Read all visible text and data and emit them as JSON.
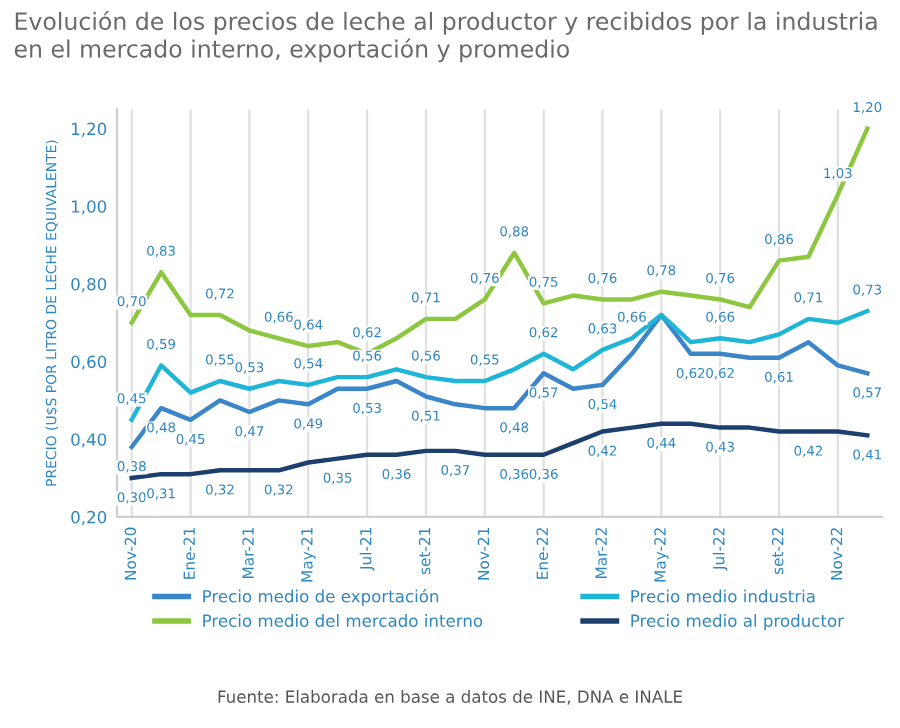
{
  "chart_data": {
    "type": "line",
    "title": "Evolución de los precios de leche al productor y recibidos por la industria en el mercado interno, exportación y promedio",
    "ylabel": "PRECIO (U$S POR LITRO DE LECHE EQUIVALENTE)",
    "categories": [
      "Nov-20",
      null,
      "Ene-21",
      null,
      "Mar-21",
      null,
      "May-21",
      null,
      "Jul-21",
      null,
      "set-21",
      null,
      "Nov-21",
      null,
      "Ene-22",
      null,
      "Mar-22",
      null,
      "May-22",
      null,
      "Jul-22",
      null,
      "set-22",
      null,
      "Nov-22",
      null
    ],
    "series": [
      {
        "name": "Precio medio de exportación",
        "color": "#3a86c8",
        "values": [
          0.38,
          0.48,
          0.45,
          0.5,
          0.47,
          0.5,
          0.49,
          0.53,
          0.53,
          0.55,
          0.51,
          0.49,
          0.48,
          0.48,
          0.57,
          0.53,
          0.54,
          0.62,
          0.72,
          0.62,
          0.62,
          0.61,
          0.61,
          0.65,
          0.59,
          0.57
        ],
        "value_labels": [
          "0,38",
          "0,48",
          "0,45",
          null,
          "0,47",
          null,
          "0,49",
          null,
          "0,53",
          null,
          "0,51",
          null,
          null,
          "0,48",
          "0,57",
          null,
          "0,54",
          null,
          null,
          "0,62",
          "0,62",
          null,
          "0,61",
          null,
          null,
          "0,57"
        ]
      },
      {
        "name": "Precio medio del mercado interno",
        "color": "#8dc63f",
        "values": [
          0.7,
          0.83,
          0.72,
          0.72,
          0.68,
          0.66,
          0.64,
          0.65,
          0.62,
          0.66,
          0.71,
          0.71,
          0.76,
          0.88,
          0.75,
          0.77,
          0.76,
          0.76,
          0.78,
          0.77,
          0.76,
          0.74,
          0.86,
          0.87,
          1.03,
          1.2
        ],
        "value_labels": [
          "0,70",
          "0,83",
          null,
          "0,72",
          null,
          "0,66",
          "0,64",
          null,
          "0,62",
          null,
          "0,71",
          null,
          "0,76",
          "0,88",
          "0,75",
          null,
          "0,76",
          null,
          "0,78",
          null,
          "0,76",
          null,
          "0,86",
          null,
          "1,03",
          "1,20"
        ]
      },
      {
        "name": "Precio medio industria",
        "color": "#1fb5d6",
        "values": [
          0.45,
          0.59,
          0.52,
          0.55,
          0.53,
          0.55,
          0.54,
          0.56,
          0.56,
          0.58,
          0.56,
          0.55,
          0.55,
          0.58,
          0.62,
          0.58,
          0.63,
          0.66,
          0.72,
          0.65,
          0.66,
          0.65,
          0.67,
          0.71,
          0.7,
          0.73
        ],
        "value_labels": [
          "0,45",
          "0,59",
          null,
          "0,55",
          "0,53",
          null,
          "0,54",
          null,
          "0,56",
          null,
          "0,56",
          null,
          "0,55",
          null,
          "0,62",
          null,
          "0,63",
          "0,66",
          null,
          null,
          "0,66",
          null,
          null,
          "0,71",
          null,
          "0,73"
        ]
      },
      {
        "name": "Precio medio al productor",
        "color": "#1d3f6e",
        "values": [
          0.3,
          0.31,
          0.31,
          0.32,
          0.32,
          0.32,
          0.34,
          0.35,
          0.36,
          0.36,
          0.37,
          0.37,
          0.36,
          0.36,
          0.36,
          0.39,
          0.42,
          0.43,
          0.44,
          0.44,
          0.43,
          0.43,
          0.42,
          0.42,
          0.42,
          0.41
        ],
        "value_labels": [
          "0,30",
          "0,31",
          null,
          "0,32",
          null,
          "0,32",
          null,
          "0,35",
          null,
          "0,36",
          null,
          "0,37",
          null,
          "0,36",
          "0,36",
          null,
          "0,42",
          null,
          "0,44",
          null,
          "0,43",
          null,
          null,
          "0,42",
          null,
          "0,41"
        ]
      }
    ],
    "ylim": [
      0.2,
      1.25
    ],
    "yticks": [
      {
        "value": 0.2,
        "label": "0,20"
      },
      {
        "value": 0.4,
        "label": "0,40"
      },
      {
        "value": 0.6,
        "label": "0,60"
      },
      {
        "value": 0.8,
        "label": "0,80"
      },
      {
        "value": 1.0,
        "label": "1,00"
      },
      {
        "value": 1.2,
        "label": "1,20"
      }
    ],
    "grid": "x",
    "legend": "bottom",
    "marker": "none",
    "line_style": "solid",
    "annotations": [
      "Fuente: Elaborada en base a datos de INE, DNA e INALE"
    ]
  }
}
